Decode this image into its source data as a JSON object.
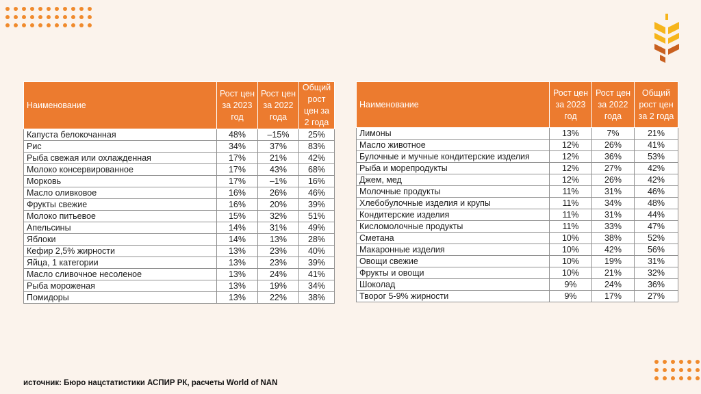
{
  "colors": {
    "accent": "#ec7b2f",
    "background": "#fbf3ec",
    "logo_yellow": "#f6b51b",
    "logo_brown": "#c9601f"
  },
  "logo": {
    "icon": "wheat-ear-logo-icon"
  },
  "tables": {
    "left": {
      "headers": {
        "name": "Наименование",
        "growth_2023": "Рост цен за 2023 год",
        "growth_2022": "Рост цен за 2022 года",
        "total": "Общий рост цен за 2 года"
      },
      "rows": [
        {
          "name": "Капуста белокочанная",
          "growth_2023": "48%",
          "growth_2022": "–15%",
          "total": "25%"
        },
        {
          "name": "Рис",
          "growth_2023": "34%",
          "growth_2022": "37%",
          "total": "83%"
        },
        {
          "name": "Рыба свежая или охлажденная",
          "growth_2023": "17%",
          "growth_2022": "21%",
          "total": "42%"
        },
        {
          "name": "Молоко консервированное",
          "growth_2023": "17%",
          "growth_2022": "43%",
          "total": "68%"
        },
        {
          "name": "Морковь",
          "growth_2023": "17%",
          "growth_2022": "–1%",
          "total": "16%"
        },
        {
          "name": "Масло оливковое",
          "growth_2023": "16%",
          "growth_2022": "26%",
          "total": "46%"
        },
        {
          "name": "Фрукты свежие",
          "growth_2023": "16%",
          "growth_2022": "20%",
          "total": "39%"
        },
        {
          "name": "Молоко питьевое",
          "growth_2023": "15%",
          "growth_2022": "32%",
          "total": "51%"
        },
        {
          "name": "Апельсины",
          "growth_2023": "14%",
          "growth_2022": "31%",
          "total": "49%"
        },
        {
          "name": "Яблоки",
          "growth_2023": "14%",
          "growth_2022": "13%",
          "total": "28%"
        },
        {
          "name": "Кефир 2,5% жирности",
          "growth_2023": "13%",
          "growth_2022": "23%",
          "total": "40%"
        },
        {
          "name": "Яйца, 1 категории",
          "growth_2023": "13%",
          "growth_2022": "23%",
          "total": "39%"
        },
        {
          "name": "Масло сливочное несоленое",
          "growth_2023": "13%",
          "growth_2022": "24%",
          "total": "41%"
        },
        {
          "name": "Рыба мороженая",
          "growth_2023": "13%",
          "growth_2022": "19%",
          "total": "34%"
        },
        {
          "name": "Помидоры",
          "growth_2023": "13%",
          "growth_2022": "22%",
          "total": "38%"
        }
      ]
    },
    "right": {
      "headers": {
        "name": "Наименование",
        "growth_2023": "Рост цен за 2023 год",
        "growth_2022": "Рост цен за 2022 года",
        "total": "Общий рост цен за 2 года"
      },
      "rows": [
        {
          "name": "Лимоны",
          "growth_2023": "13%",
          "growth_2022": "7%",
          "total": "21%"
        },
        {
          "name": "Масло животное",
          "growth_2023": "12%",
          "growth_2022": "26%",
          "total": "41%"
        },
        {
          "name": "Булочные и мучные кондитерские изделия",
          "growth_2023": "12%",
          "growth_2022": "36%",
          "total": "53%"
        },
        {
          "name": "Рыба и морепродукты",
          "growth_2023": "12%",
          "growth_2022": "27%",
          "total": "42%"
        },
        {
          "name": "Джем, мед",
          "growth_2023": "12%",
          "growth_2022": "26%",
          "total": "42%"
        },
        {
          "name": "Молочные продукты",
          "growth_2023": "11%",
          "growth_2022": "31%",
          "total": "46%"
        },
        {
          "name": "Хлебобулочные изделия и крупы",
          "growth_2023": "11%",
          "growth_2022": "34%",
          "total": "48%"
        },
        {
          "name": "Кондитерские изделия",
          "growth_2023": "11%",
          "growth_2022": "31%",
          "total": "44%"
        },
        {
          "name": "Кисломолочные продукты",
          "growth_2023": "11%",
          "growth_2022": "33%",
          "total": "47%"
        },
        {
          "name": "Сметана",
          "growth_2023": "10%",
          "growth_2022": "38%",
          "total": "52%"
        },
        {
          "name": "Макаронные изделия",
          "growth_2023": "10%",
          "growth_2022": "42%",
          "total": "56%"
        },
        {
          "name": "Овощи свежие",
          "growth_2023": "10%",
          "growth_2022": "19%",
          "total": "31%"
        },
        {
          "name": "Фрукты и овощи",
          "growth_2023": "10%",
          "growth_2022": "21%",
          "total": "32%"
        },
        {
          "name": "Шоколад",
          "growth_2023": "9%",
          "growth_2022": "24%",
          "total": "36%"
        },
        {
          "name": "Творог 5-9% жирности",
          "growth_2023": "9%",
          "growth_2022": "17%",
          "total": "27%"
        }
      ]
    }
  },
  "footer": {
    "source": "источник: Бюро нацстатистики АСПИР РК, расчеты World of NAN"
  }
}
